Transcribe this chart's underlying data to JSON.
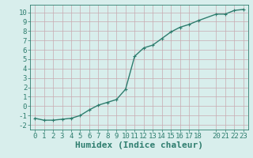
{
  "xlabel": "Humidex (Indice chaleur)",
  "x": [
    0,
    1,
    2,
    3,
    4,
    5,
    6,
    7,
    8,
    9,
    10,
    11,
    12,
    13,
    14,
    15,
    16,
    17,
    18,
    20,
    21,
    22,
    23
  ],
  "y": [
    -1.3,
    -1.5,
    -1.5,
    -1.4,
    -1.3,
    -1.0,
    -0.4,
    0.1,
    0.4,
    0.7,
    1.8,
    5.3,
    6.2,
    6.5,
    7.2,
    7.9,
    8.4,
    8.7,
    9.1,
    9.8,
    9.8,
    10.2,
    10.3
  ],
  "xlim": [
    -0.5,
    23.5
  ],
  "ylim": [
    -2.5,
    10.8
  ],
  "xticks": [
    0,
    1,
    2,
    3,
    4,
    5,
    6,
    7,
    8,
    9,
    10,
    11,
    12,
    13,
    14,
    15,
    16,
    17,
    18,
    20,
    21,
    22,
    23
  ],
  "yticks": [
    -2,
    -1,
    0,
    1,
    2,
    3,
    4,
    5,
    6,
    7,
    8,
    9,
    10
  ],
  "line_color": "#2e7d6e",
  "marker_color": "#2e7d6e",
  "bg_color": "#d8eeec",
  "grid_color": "#c8aab0",
  "xlabel_fontsize": 8,
  "tick_fontsize": 6.5,
  "line_width": 1.0,
  "marker_size": 3.0
}
